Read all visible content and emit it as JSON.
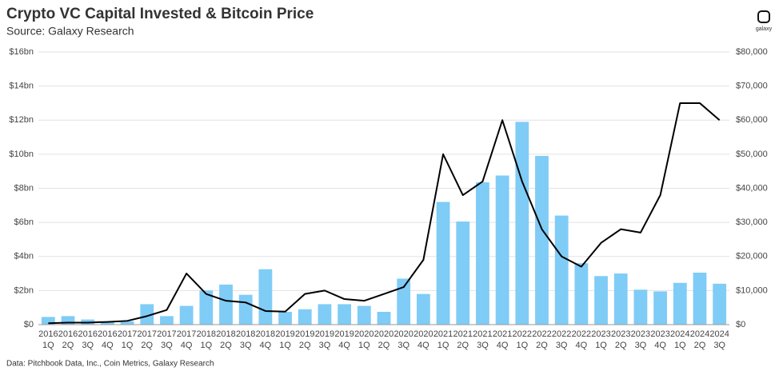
{
  "chart_data": {
    "type": "bar_line",
    "title": "Crypto VC Capital Invested & Bitcoin Price",
    "subtitle": "Source: Galaxy Research",
    "footnote": "Data: Pitchbook Data, Inc., Coin Metrics, Galaxy Research",
    "logo": "galaxy",
    "categories": [
      [
        "2016",
        "1Q"
      ],
      [
        "2016",
        "2Q"
      ],
      [
        "2016",
        "3Q"
      ],
      [
        "2016",
        "4Q"
      ],
      [
        "2017",
        "1Q"
      ],
      [
        "2017",
        "2Q"
      ],
      [
        "2017",
        "3Q"
      ],
      [
        "2017",
        "4Q"
      ],
      [
        "2018",
        "1Q"
      ],
      [
        "2018",
        "2Q"
      ],
      [
        "2018",
        "3Q"
      ],
      [
        "2018",
        "4Q"
      ],
      [
        "2019",
        "1Q"
      ],
      [
        "2019",
        "2Q"
      ],
      [
        "2019",
        "3Q"
      ],
      [
        "2019",
        "4Q"
      ],
      [
        "2020",
        "1Q"
      ],
      [
        "2020",
        "2Q"
      ],
      [
        "2020",
        "3Q"
      ],
      [
        "2020",
        "4Q"
      ],
      [
        "2021",
        "1Q"
      ],
      [
        "2021",
        "2Q"
      ],
      [
        "2021",
        "3Q"
      ],
      [
        "2021",
        "4Q"
      ],
      [
        "2022",
        "1Q"
      ],
      [
        "2022",
        "2Q"
      ],
      [
        "2022",
        "3Q"
      ],
      [
        "2022",
        "4Q"
      ],
      [
        "2023",
        "1Q"
      ],
      [
        "2023",
        "2Q"
      ],
      [
        "2023",
        "3Q"
      ],
      [
        "2023",
        "4Q"
      ],
      [
        "2024",
        "1Q"
      ],
      [
        "2024",
        "2Q"
      ],
      [
        "2024",
        "3Q"
      ]
    ],
    "series": [
      {
        "type": "bar",
        "color": "#7fccf6",
        "values": [
          0.45,
          0.5,
          0.3,
          0.15,
          0.2,
          1.2,
          0.5,
          1.1,
          2.0,
          2.35,
          1.75,
          3.25,
          0.75,
          0.9,
          1.2,
          1.2,
          1.1,
          0.75,
          2.7,
          1.8,
          7.2,
          6.05,
          8.35,
          8.75,
          11.9,
          9.9,
          6.4,
          3.6,
          2.85,
          3.0,
          2.05,
          1.95,
          2.45,
          3.05,
          2.4
        ]
      },
      {
        "type": "line",
        "color": "#000000",
        "axis": "y2",
        "values": [
          400,
          600,
          600,
          800,
          1100,
          2500,
          4300,
          15000,
          9000,
          7000,
          6500,
          4000,
          3800,
          9000,
          10000,
          7500,
          7000,
          9000,
          11000,
          19000,
          50000,
          38000,
          42000,
          60000,
          42000,
          28000,
          20000,
          17000,
          24000,
          28000,
          27000,
          38000,
          65000,
          65000,
          60000
        ]
      }
    ],
    "ylim": [
      0,
      16
    ],
    "yticks": [
      {
        "value": 0,
        "label": "$0"
      },
      {
        "value": 2,
        "label": "$2bn"
      },
      {
        "value": 4,
        "label": "$4bn"
      },
      {
        "value": 6,
        "label": "$6bn"
      },
      {
        "value": 8,
        "label": "$8bn"
      },
      {
        "value": 10,
        "label": "$10bn"
      },
      {
        "value": 12,
        "label": "$12bn"
      },
      {
        "value": 14,
        "label": "$14bn"
      },
      {
        "value": 16,
        "label": "$16bn"
      }
    ],
    "y2lim": [
      0,
      80000
    ],
    "y2ticks": [
      {
        "value": 0,
        "label": "$0"
      },
      {
        "value": 10000,
        "label": "$10,000"
      },
      {
        "value": 20000,
        "label": "$20,000"
      },
      {
        "value": 30000,
        "label": "$30,000"
      },
      {
        "value": 40000,
        "label": "$40,000"
      },
      {
        "value": 50000,
        "label": "$50,000"
      },
      {
        "value": 60000,
        "label": "$60,000"
      },
      {
        "value": 70000,
        "label": "$70,000"
      },
      {
        "value": 80000,
        "label": "$80,000"
      }
    ],
    "grid": true
  }
}
